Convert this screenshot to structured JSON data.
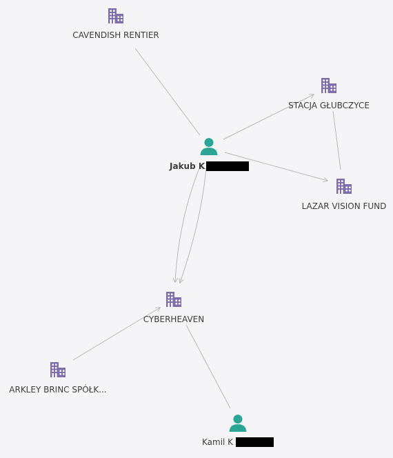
{
  "colors": {
    "background": "#f5f5f7",
    "company_icon": "#7e6fab",
    "person_icon": "#2aa596",
    "edge": "#b9b9bd",
    "label": "#3c3c3c"
  },
  "nodes": {
    "cavendish": {
      "label": "CAVENDISH RENTIER",
      "kind": "company",
      "icon": "building-icon"
    },
    "stacja": {
      "label": "STACJA GŁUBCZYCE",
      "kind": "company",
      "icon": "building-icon"
    },
    "jakub": {
      "label": "Jakub K",
      "kind": "person",
      "icon": "person-icon",
      "redacted_suffix": true
    },
    "lazar": {
      "label": "LAZAR VISION FUND",
      "kind": "company",
      "icon": "building-icon"
    },
    "cyberheaven": {
      "label": "CYBERHEAVEN",
      "kind": "company",
      "icon": "building-icon"
    },
    "arkley": {
      "label": "ARKLEY BRINC SPÓŁK...",
      "kind": "company",
      "icon": "building-icon"
    },
    "kamil": {
      "label": "Kamil K",
      "kind": "person",
      "icon": "person-icon",
      "redacted_suffix": true
    }
  },
  "edges": [
    {
      "from": "cavendish",
      "to": "jakub",
      "arrow": false
    },
    {
      "from": "jakub",
      "to": "stacja",
      "arrow": true
    },
    {
      "from": "jakub",
      "to": "lazar",
      "arrow": true
    },
    {
      "from": "stacja",
      "to": "lazar",
      "arrow": false
    },
    {
      "from": "jakub",
      "to": "cyberheaven",
      "arrow": true,
      "curve": "left"
    },
    {
      "from": "jakub",
      "to": "cyberheaven",
      "arrow": true,
      "curve": "right"
    },
    {
      "from": "arkley",
      "to": "cyberheaven",
      "arrow": true
    },
    {
      "from": "cyberheaven",
      "to": "kamil",
      "arrow": false
    }
  ]
}
